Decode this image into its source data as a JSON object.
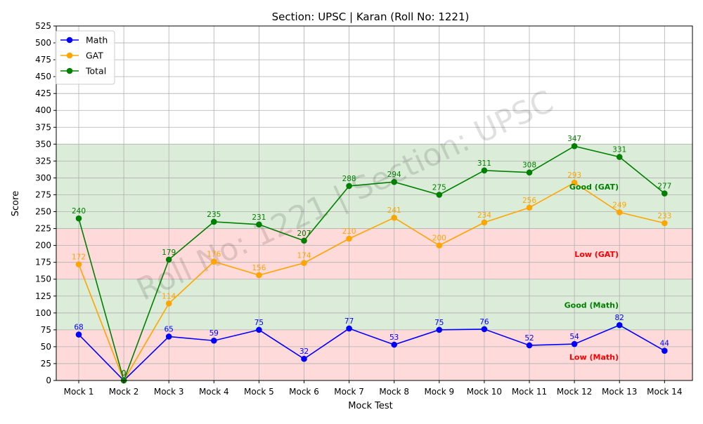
{
  "chart_data": {
    "type": "line",
    "title": "Section: UPSC | Karan (Roll No: 1221)",
    "xlabel": "Mock Test",
    "ylabel": "Score",
    "watermark": "Roll No: 1221 | Section: UPSC",
    "ylim": [
      0,
      525
    ],
    "yticks": [
      0,
      25,
      50,
      75,
      100,
      125,
      150,
      175,
      200,
      225,
      250,
      275,
      300,
      325,
      350,
      375,
      400,
      425,
      450,
      475,
      500,
      525
    ],
    "grid": true,
    "legend_position": "top-left",
    "categories": [
      "Mock 1",
      "Mock 2",
      "Mock 3",
      "Mock 4",
      "Mock 5",
      "Mock 6",
      "Mock 7",
      "Mock 8",
      "Mock 9",
      "Mock 10",
      "Mock 11",
      "Mock 12",
      "Mock 13",
      "Mock 14"
    ],
    "series": [
      {
        "name": "Math",
        "color": "#0000ff",
        "values": [
          68,
          0,
          65,
          59,
          75,
          32,
          77,
          53,
          75,
          76,
          52,
          54,
          82,
          44
        ]
      },
      {
        "name": "GAT",
        "color": "#ffa500",
        "values": [
          172,
          0,
          114,
          176,
          156,
          174,
          210,
          241,
          200,
          234,
          256,
          293,
          249,
          233
        ]
      },
      {
        "name": "Total",
        "color": "#008000",
        "values": [
          240,
          0,
          179,
          235,
          231,
          207,
          288,
          294,
          275,
          311,
          308,
          347,
          331,
          277
        ]
      }
    ],
    "bands": [
      {
        "from": 0,
        "to": 75,
        "color": "#ffdada",
        "label": "Low (Math)",
        "label_color": "#ff0000",
        "label_y": 35
      },
      {
        "from": 75,
        "to": 150,
        "color": "#dbecd8",
        "label": "Good (Math)",
        "label_color": "#008000",
        "label_y": 112
      },
      {
        "from": 150,
        "to": 225,
        "color": "#ffdada",
        "label": "Low (GAT)",
        "label_color": "#ff0000",
        "label_y": 187
      },
      {
        "from": 225,
        "to": 350,
        "color": "#dbecd8",
        "label": "Good (GAT)",
        "label_color": "#008000",
        "label_y": 287
      }
    ]
  }
}
